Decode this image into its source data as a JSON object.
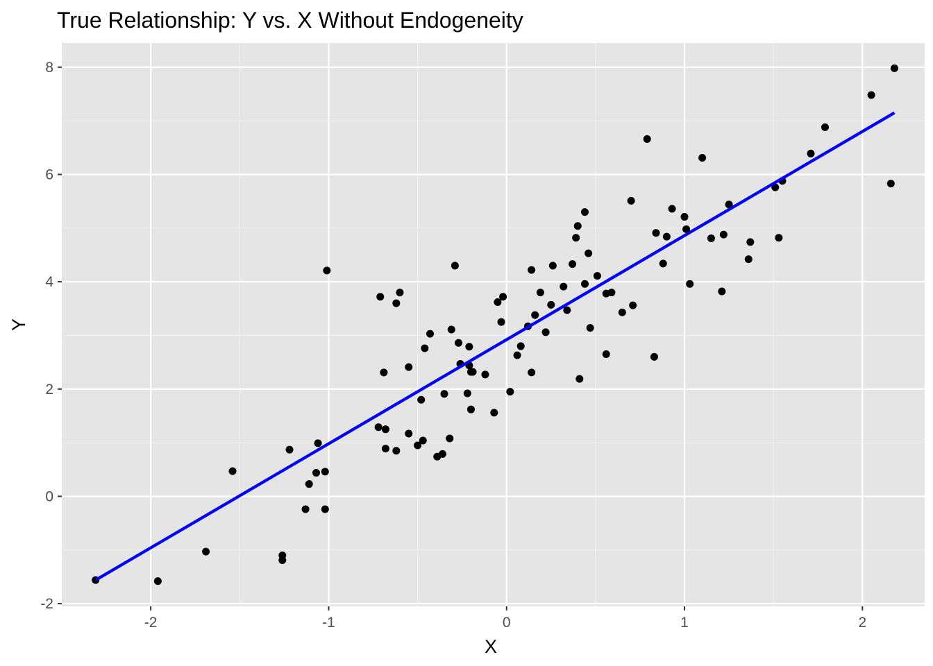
{
  "chart_data": {
    "type": "scatter",
    "title": "True Relationship: Y vs. X Without Endogeneity",
    "xlabel": "X",
    "ylabel": "Y",
    "xlim": [
      -2.5,
      2.35
    ],
    "ylim": [
      -2.05,
      8.45
    ],
    "x_ticks": [
      -2,
      -1,
      0,
      1,
      2
    ],
    "y_ticks": [
      -2,
      0,
      2,
      4,
      6,
      8
    ],
    "x_tick_labels": [
      "-2",
      "-1",
      "0",
      "1",
      "2"
    ],
    "y_tick_labels": [
      "-2",
      "0",
      "2",
      "4",
      "6",
      "8"
    ],
    "grid": true,
    "legend": "none",
    "colors": {
      "panel_background": "#e5e5e5",
      "grid_major": "#ffffff",
      "grid_minor": "#f2f2f2",
      "points": "#000000",
      "fit_line": "#0000ff"
    },
    "series": [
      {
        "type": "scatter",
        "points": [
          [
            -2.31,
            -1.56
          ],
          [
            -1.96,
            -1.58
          ],
          [
            -1.69,
            -1.03
          ],
          [
            -1.54,
            0.47
          ],
          [
            -1.26,
            -1.1
          ],
          [
            -1.26,
            -1.19
          ],
          [
            -1.22,
            0.87
          ],
          [
            -1.13,
            -0.24
          ],
          [
            -1.11,
            0.23
          ],
          [
            -1.07,
            0.44
          ],
          [
            -1.06,
            0.99
          ],
          [
            -1.02,
            0.46
          ],
          [
            -1.02,
            -0.24
          ],
          [
            -1.01,
            4.21
          ],
          [
            -0.72,
            1.29
          ],
          [
            -0.71,
            3.72
          ],
          [
            -0.69,
            2.31
          ],
          [
            -0.68,
            1.25
          ],
          [
            -0.68,
            0.89
          ],
          [
            -0.62,
            3.6
          ],
          [
            -0.62,
            0.85
          ],
          [
            -0.6,
            3.8
          ],
          [
            -0.55,
            2.41
          ],
          [
            -0.55,
            1.17
          ],
          [
            -0.5,
            0.95
          ],
          [
            -0.48,
            1.8
          ],
          [
            -0.47,
            1.04
          ],
          [
            -0.46,
            2.76
          ],
          [
            -0.43,
            3.03
          ],
          [
            -0.39,
            0.74
          ],
          [
            -0.36,
            0.79
          ],
          [
            -0.35,
            1.91
          ],
          [
            -0.32,
            1.08
          ],
          [
            -0.31,
            3.11
          ],
          [
            -0.29,
            4.3
          ],
          [
            -0.27,
            2.86
          ],
          [
            -0.26,
            2.47
          ],
          [
            -0.22,
            1.92
          ],
          [
            -0.21,
            2.79
          ],
          [
            -0.21,
            2.44
          ],
          [
            -0.2,
            2.32
          ],
          [
            -0.2,
            1.62
          ],
          [
            -0.19,
            2.32
          ],
          [
            -0.12,
            2.27
          ],
          [
            -0.07,
            1.56
          ],
          [
            -0.05,
            3.62
          ],
          [
            -0.03,
            3.25
          ],
          [
            -0.02,
            3.72
          ],
          [
            0.02,
            1.95
          ],
          [
            0.06,
            2.63
          ],
          [
            0.08,
            2.8
          ],
          [
            0.12,
            3.17
          ],
          [
            0.14,
            4.22
          ],
          [
            0.14,
            2.31
          ],
          [
            0.16,
            3.38
          ],
          [
            0.19,
            3.8
          ],
          [
            0.22,
            3.06
          ],
          [
            0.25,
            3.57
          ],
          [
            0.26,
            4.3
          ],
          [
            0.32,
            3.91
          ],
          [
            0.34,
            3.47
          ],
          [
            0.37,
            4.33
          ],
          [
            0.39,
            4.82
          ],
          [
            0.4,
            5.04
          ],
          [
            0.41,
            2.19
          ],
          [
            0.44,
            5.3
          ],
          [
            0.44,
            3.96
          ],
          [
            0.46,
            4.53
          ],
          [
            0.47,
            3.14
          ],
          [
            0.51,
            4.11
          ],
          [
            0.56,
            3.78
          ],
          [
            0.56,
            2.65
          ],
          [
            0.59,
            3.8
          ],
          [
            0.65,
            3.43
          ],
          [
            0.7,
            5.51
          ],
          [
            0.71,
            3.56
          ],
          [
            0.79,
            6.66
          ],
          [
            0.83,
            2.6
          ],
          [
            0.84,
            4.91
          ],
          [
            0.88,
            4.34
          ],
          [
            0.9,
            4.84
          ],
          [
            0.93,
            5.36
          ],
          [
            1.0,
            5.21
          ],
          [
            1.01,
            4.98
          ],
          [
            1.03,
            3.96
          ],
          [
            1.1,
            6.31
          ],
          [
            1.15,
            4.81
          ],
          [
            1.21,
            3.82
          ],
          [
            1.22,
            4.88
          ],
          [
            1.25,
            5.44
          ],
          [
            1.36,
            4.42
          ],
          [
            1.37,
            4.74
          ],
          [
            1.51,
            5.76
          ],
          [
            1.53,
            4.82
          ],
          [
            1.55,
            5.88
          ],
          [
            1.71,
            6.39
          ],
          [
            1.79,
            6.88
          ],
          [
            2.05,
            7.48
          ],
          [
            2.16,
            5.83
          ],
          [
            2.18,
            7.98
          ]
        ]
      },
      {
        "type": "line",
        "fit": "linear",
        "points": [
          [
            -2.31,
            -1.56
          ],
          [
            2.18,
            7.15
          ]
        ]
      }
    ]
  }
}
